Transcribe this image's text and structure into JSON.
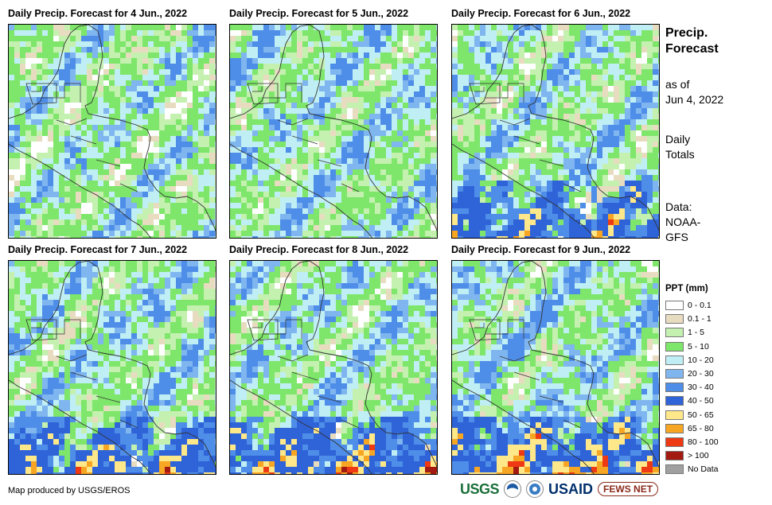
{
  "panels": [
    {
      "title": "Daily Precip. Forecast for 4 Jun., 2022",
      "seed": 11,
      "wet": 0.35,
      "south_storm": 0
    },
    {
      "title": "Daily Precip. Forecast for 5 Jun., 2022",
      "seed": 23,
      "wet": 0.55,
      "south_storm": 0
    },
    {
      "title": "Daily Precip. Forecast for 6 Jun., 2022",
      "seed": 37,
      "wet": 0.45,
      "south_storm": 1
    },
    {
      "title": "Daily Precip. Forecast for 7 Jun., 2022",
      "seed": 41,
      "wet": 0.5,
      "south_storm": 2
    },
    {
      "title": "Daily Precip. Forecast for 8 Jun., 2022",
      "seed": 53,
      "wet": 0.5,
      "south_storm": 3
    },
    {
      "title": "Daily Precip. Forecast for 9 Jun., 2022",
      "seed": 67,
      "wet": 0.6,
      "south_storm": 4
    }
  ],
  "sidebar": {
    "title_line1": "Precip.",
    "title_line2": "Forecast",
    "asof_line1": "as of",
    "asof_line2": "Jun 4, 2022",
    "totals_line1": "Daily",
    "totals_line2": "Totals",
    "data_line1": "Data:",
    "data_line2": "NOAA-",
    "data_line3": "GFS"
  },
  "legend": {
    "title": "PPT (mm)",
    "items": [
      {
        "label": "0 - 0.1",
        "color": "#ffffff"
      },
      {
        "label": "0.1 - 1",
        "color": "#e8dcc0"
      },
      {
        "label": "1 - 5",
        "color": "#c4f0b0"
      },
      {
        "label": "5 - 10",
        "color": "#7ee66a"
      },
      {
        "label": "10 - 20",
        "color": "#bfeff5"
      },
      {
        "label": "20 - 30",
        "color": "#7fb6ef"
      },
      {
        "label": "30 - 40",
        "color": "#4f8ee8"
      },
      {
        "label": "40 - 50",
        "color": "#2f63d8"
      },
      {
        "label": "50 - 65",
        "color": "#ffe88a"
      },
      {
        "label": "65 - 80",
        "color": "#f7a623"
      },
      {
        "label": "80 - 100",
        "color": "#ee3a14"
      },
      {
        "label": "> 100",
        "color": "#a31a12"
      },
      {
        "label": "No Data",
        "color": "#a0a0a0"
      }
    ]
  },
  "credit": "Map produced by USGS/EROS",
  "logos": {
    "usgs": "USGS",
    "usaid": "USAID",
    "fews": "FEWS NET"
  }
}
